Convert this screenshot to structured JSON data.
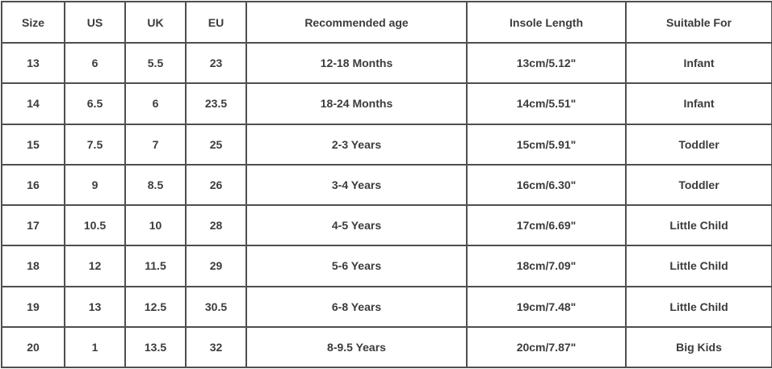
{
  "colors": {
    "border": "#4f4f4f",
    "text": "#3c3c3c",
    "background": "#ffffff"
  },
  "chart_data": {
    "type": "table",
    "columns": [
      "Size",
      "US",
      "UK",
      "EU",
      "Recommended age",
      "Insole Length",
      "Suitable For"
    ],
    "rows": [
      [
        "13",
        "6",
        "5.5",
        "23",
        "12-18 Months",
        "13cm/5.12\"",
        "Infant"
      ],
      [
        "14",
        "6.5",
        "6",
        "23.5",
        "18-24 Months",
        "14cm/5.51\"",
        "Infant"
      ],
      [
        "15",
        "7.5",
        "7",
        "25",
        "2-3 Years",
        "15cm/5.91\"",
        "Toddler"
      ],
      [
        "16",
        "9",
        "8.5",
        "26",
        "3-4 Years",
        "16cm/6.30\"",
        "Toddler"
      ],
      [
        "17",
        "10.5",
        "10",
        "28",
        "4-5 Years",
        "17cm/6.69\"",
        "Little Child"
      ],
      [
        "18",
        "12",
        "11.5",
        "29",
        "5-6 Years",
        "18cm/7.09\"",
        "Little Child"
      ],
      [
        "19",
        "13",
        "12.5",
        "30.5",
        "6-8 Years",
        "19cm/7.48\"",
        "Little Child"
      ],
      [
        "20",
        "1",
        "13.5",
        "32",
        "8-9.5 Years",
        "20cm/7.87\"",
        "Big Kids"
      ]
    ]
  }
}
